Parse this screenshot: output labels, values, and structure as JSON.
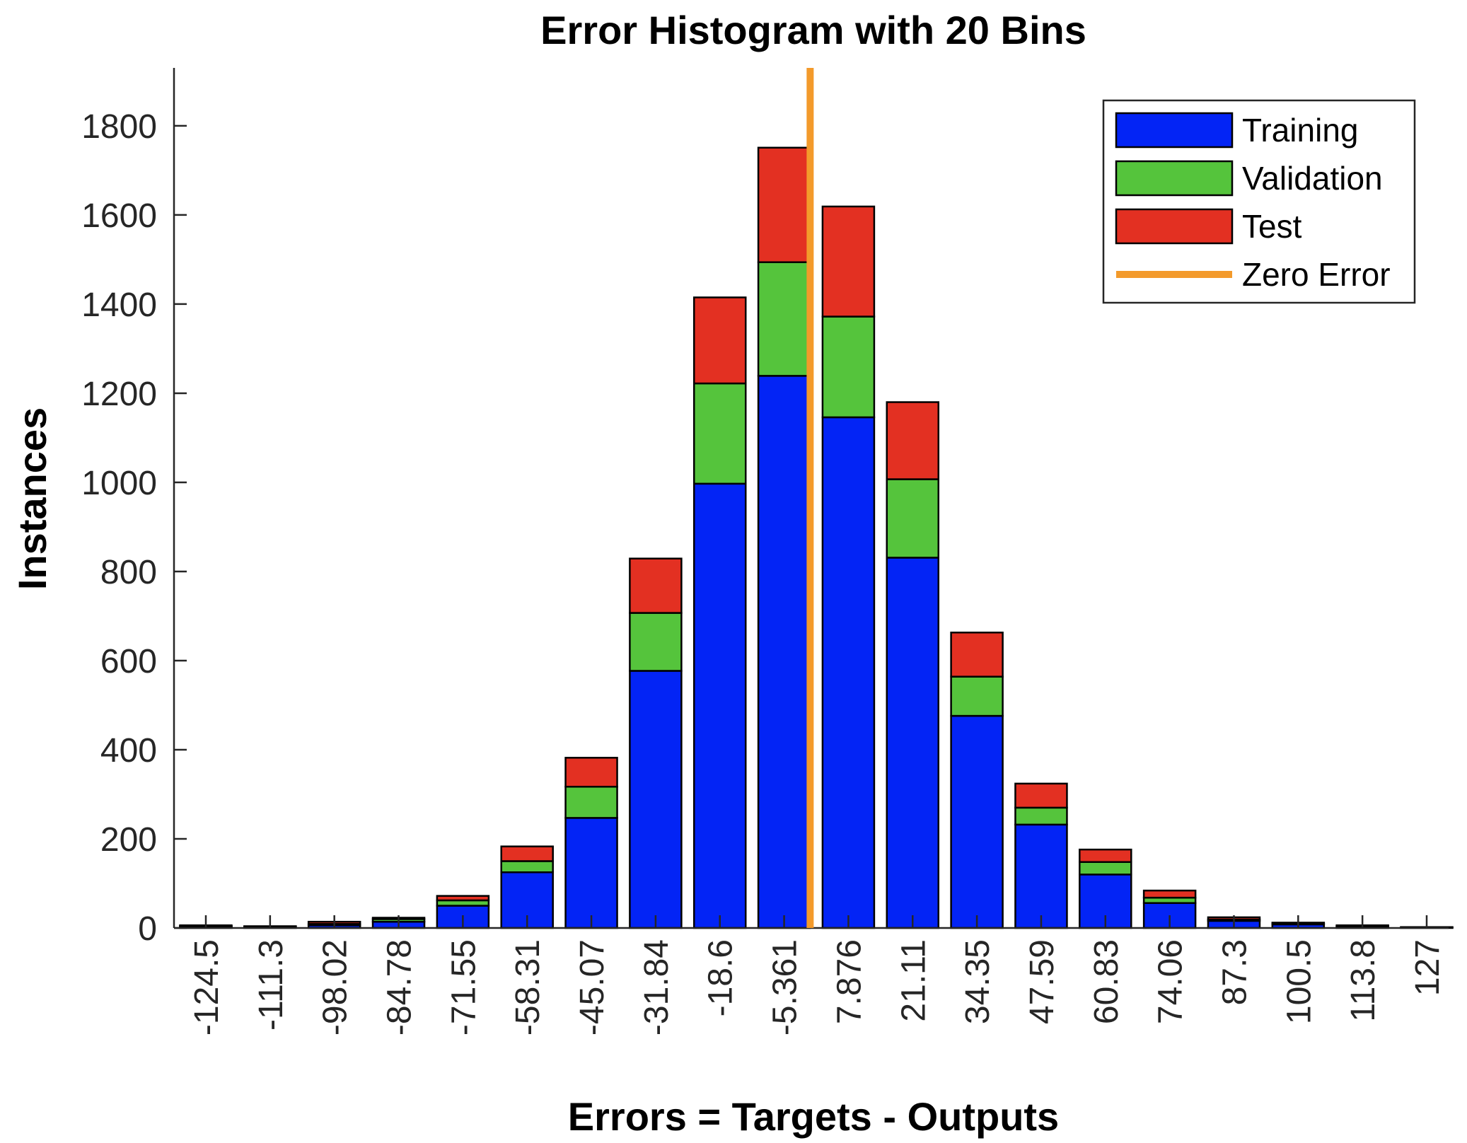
{
  "chart_data": {
    "type": "bar",
    "stacked": true,
    "title": "Error Histogram with 20 Bins",
    "xlabel": "Errors = Targets - Outputs",
    "ylabel": "Instances",
    "categories": [
      "-124.5",
      "-111.3",
      "-98.02",
      "-84.78",
      "-71.55",
      "-58.31",
      "-45.07",
      "-31.84",
      "-18.6",
      "-5.361",
      "7.876",
      "21.11",
      "34.35",
      "47.59",
      "60.83",
      "74.06",
      "87.3",
      "100.5",
      "113.8",
      "127"
    ],
    "series": [
      {
        "name": "Training",
        "color": "#0324f5",
        "values": [
          3,
          2,
          6,
          14,
          50,
          125,
          247,
          577,
          997,
          1239,
          1146,
          831,
          476,
          232,
          120,
          56,
          16,
          8,
          3,
          1
        ]
      },
      {
        "name": "Validation",
        "color": "#55c43c",
        "values": [
          1,
          1,
          3,
          6,
          12,
          25,
          70,
          130,
          225,
          255,
          226,
          176,
          88,
          38,
          28,
          12,
          3,
          2,
          1,
          0
        ]
      },
      {
        "name": "Test",
        "color": "#e33022",
        "values": [
          2,
          1,
          5,
          3,
          10,
          33,
          65,
          122,
          193,
          257,
          247,
          173,
          99,
          54,
          28,
          16,
          5,
          2,
          2,
          1
        ]
      }
    ],
    "zero_line": {
      "name": "Zero Error",
      "color": "#f39a2b",
      "x": 0
    },
    "ylim": [
      0,
      1930
    ],
    "yticks": [
      0,
      200,
      400,
      600,
      800,
      1000,
      1200,
      1400,
      1600,
      1800
    ],
    "legend_position": "top-right",
    "grid": false
  }
}
